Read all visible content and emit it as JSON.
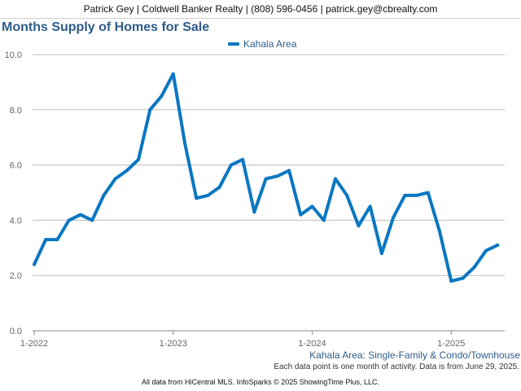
{
  "header": {
    "contact": "Patrick Gey | Coldwell Banker Realty | (808) 596-0456 | patrick.gey@cbrealty.com"
  },
  "colors": {
    "series": "#0a77c2",
    "title": "#2e5b8a",
    "grid": "#bdbdbd"
  },
  "chart_data": {
    "type": "line",
    "title": "Months Supply of Homes for Sale",
    "legend_position": "top-center",
    "grid": true,
    "xlim": [
      "2022-01",
      "2025-05"
    ],
    "ylim": [
      0,
      10
    ],
    "y_ticks": [
      "0.0",
      "2.0",
      "4.0",
      "6.0",
      "8.0",
      "10.0"
    ],
    "x_ticks": [
      "1-2022",
      "1-2023",
      "1-2024",
      "1-2025"
    ],
    "series": [
      {
        "name": "Kahala Area",
        "x": [
          "2022-01",
          "2022-02",
          "2022-03",
          "2022-04",
          "2022-05",
          "2022-06",
          "2022-07",
          "2022-08",
          "2022-09",
          "2022-10",
          "2022-11",
          "2022-12",
          "2023-01",
          "2023-02",
          "2023-03",
          "2023-04",
          "2023-05",
          "2023-06",
          "2023-07",
          "2023-08",
          "2023-09",
          "2023-10",
          "2023-11",
          "2023-12",
          "2024-01",
          "2024-02",
          "2024-03",
          "2024-04",
          "2024-05",
          "2024-06",
          "2024-07",
          "2024-08",
          "2024-09",
          "2024-10",
          "2024-11",
          "2024-12",
          "2025-01",
          "2025-02",
          "2025-03",
          "2025-04",
          "2025-05"
        ],
        "values": [
          2.4,
          3.3,
          3.3,
          4.0,
          4.2,
          4.0,
          4.9,
          5.5,
          5.8,
          6.2,
          8.0,
          8.5,
          9.3,
          6.8,
          4.8,
          4.9,
          5.2,
          6.0,
          6.2,
          4.3,
          5.5,
          5.6,
          5.8,
          4.2,
          4.5,
          4.0,
          5.5,
          4.9,
          3.8,
          4.5,
          2.8,
          4.1,
          4.9,
          4.9,
          5.0,
          3.6,
          1.8,
          1.9,
          2.3,
          2.9,
          3.1
        ]
      }
    ]
  },
  "notes": {
    "area": "Kahala Area: Single-Family & Condo/Townhouse",
    "data_note": "Each data point is one month of activity. Data is from June 29, 2025.",
    "footer": "All data from HiCentral MLS. InfoSparks © 2025 ShowingTime Plus, LLC."
  }
}
